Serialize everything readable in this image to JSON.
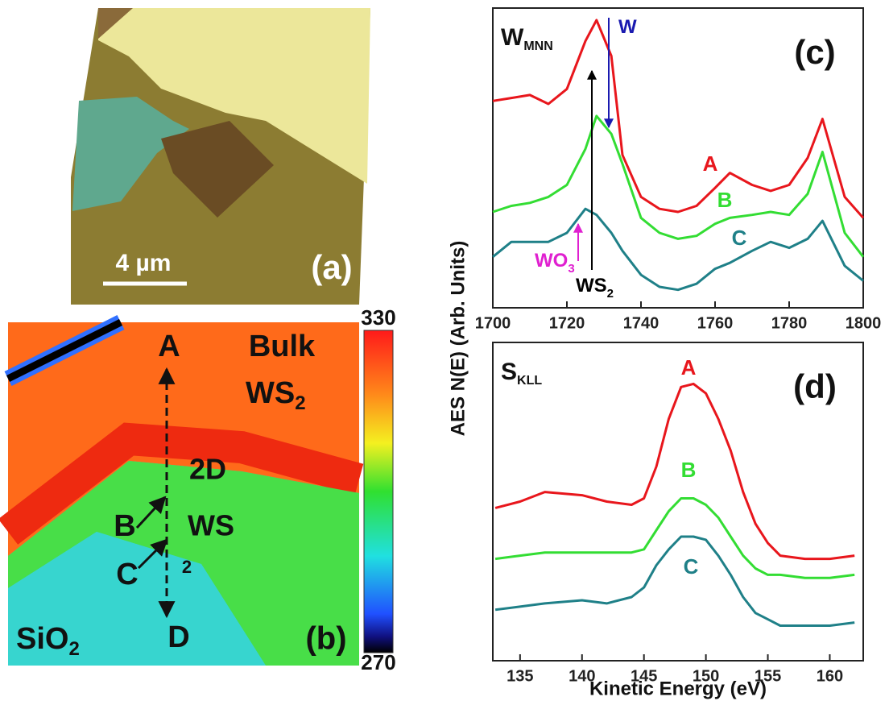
{
  "panel_a": {
    "scale_bar_label": "4 µm",
    "panel_label": "(a)"
  },
  "panel_b": {
    "panel_label": "(b)",
    "points": [
      "A",
      "B",
      "C",
      "D"
    ],
    "bulk_label": {
      "line1": "Bulk",
      "line2": "WS",
      "sub": "2"
    },
    "layer_label": {
      "line1": "2D",
      "line2": "WS",
      "sub": "2"
    },
    "substrate_label": {
      "text": "SiO",
      "sub": "2"
    },
    "colorbar": {
      "lim": [
        270,
        330
      ],
      "ticks": [
        270,
        330
      ]
    }
  },
  "chart_data": [
    {
      "type": "line",
      "panel_label": "(c)",
      "title": {
        "text": "W",
        "sub": "MNN"
      },
      "ylabel": "AES N(E) (Arb. Units)",
      "x": [
        1700,
        1705,
        1710,
        1715,
        1720,
        1725,
        1728,
        1732,
        1735,
        1740,
        1745,
        1750,
        1755,
        1760,
        1764,
        1770,
        1775,
        1780,
        1785,
        1789,
        1795,
        1800
      ],
      "xlim": [
        1700,
        1800
      ],
      "xticks": [
        1700,
        1720,
        1740,
        1760,
        1780,
        1800
      ],
      "ylim": [
        0,
        100
      ],
      "series": [
        {
          "name": "A",
          "color": "#e8161c",
          "values": [
            69,
            70,
            71,
            68,
            73,
            89,
            96,
            84,
            51,
            37,
            33,
            32,
            34,
            40,
            45,
            41,
            39,
            41,
            50,
            63,
            37,
            30
          ]
        },
        {
          "name": "B",
          "color": "#33dd33",
          "values": [
            32,
            34,
            35,
            37,
            41,
            53,
            64,
            58,
            48,
            30,
            25,
            23,
            24,
            28,
            30,
            31,
            32,
            31,
            38,
            52,
            25,
            17
          ]
        },
        {
          "name": "C",
          "color": "#1f8088",
          "values": [
            17,
            22,
            22,
            22,
            25,
            33,
            31,
            25,
            19,
            11,
            7,
            6,
            8,
            13,
            15,
            19,
            22,
            20,
            23,
            29,
            14,
            9
          ]
        }
      ],
      "annotations": [
        {
          "text": "W",
          "color": "#1a1ab0"
        },
        {
          "text": "WS",
          "sub": "2",
          "color": "#000000"
        },
        {
          "text": "WO",
          "sub": "3",
          "color": "#e020d0"
        }
      ]
    },
    {
      "type": "line",
      "panel_label": "(d)",
      "title": {
        "text": "S",
        "sub": "KLL"
      },
      "xlabel": "Kinetic Energy (eV)",
      "x": [
        133,
        135,
        137,
        140,
        142,
        144,
        145,
        146,
        147,
        148,
        149,
        150,
        151,
        152,
        153,
        154,
        155,
        156,
        158,
        160,
        162
      ],
      "xlim": [
        132.8,
        162.7
      ],
      "xticks": [
        135,
        140,
        145,
        150,
        155,
        160
      ],
      "ylim": [
        0,
        100
      ],
      "series": [
        {
          "name": "A",
          "color": "#e8161c",
          "values": [
            48,
            50,
            53,
            52,
            50,
            49,
            51,
            61,
            76,
            86,
            87,
            84,
            76,
            66,
            53,
            43,
            37,
            33,
            32,
            32,
            33
          ]
        },
        {
          "name": "B",
          "color": "#33dd33",
          "values": [
            32,
            33,
            34,
            34,
            34,
            34,
            35,
            41,
            47,
            51,
            51,
            49,
            45,
            39,
            33,
            29,
            27,
            27,
            26,
            26,
            27
          ]
        },
        {
          "name": "C",
          "color": "#1f8088",
          "values": [
            16,
            17,
            18,
            19,
            18,
            20,
            23,
            30,
            35,
            39,
            39,
            38,
            33,
            27,
            20,
            15,
            13,
            11,
            11,
            11,
            12
          ]
        }
      ]
    }
  ]
}
